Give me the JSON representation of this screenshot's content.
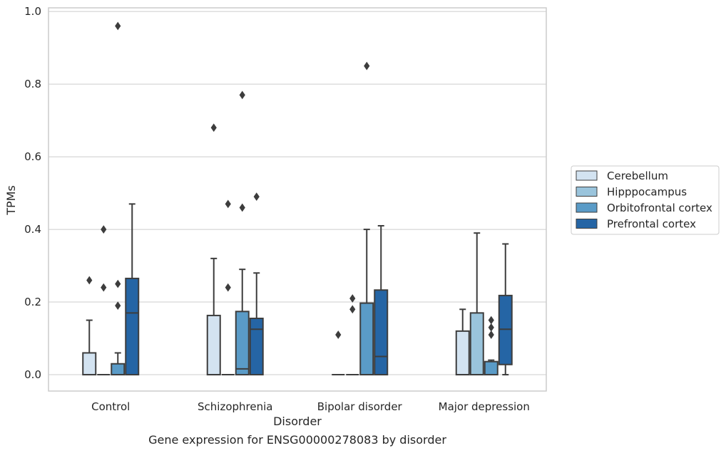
{
  "chart_data": {
    "type": "box",
    "title": "",
    "caption": "Gene expression for ENSG00000278083 by disorder",
    "xlabel": "Disorder",
    "ylabel": "TPMs",
    "ylim": [
      -0.045,
      1.01
    ],
    "yticks": [
      "0.0",
      "0.2",
      "0.4",
      "0.6",
      "0.8",
      "1.0"
    ],
    "grid": true,
    "legend_position": "right",
    "categories": [
      "Control",
      "Schizophrenia",
      "Bipolar disorder",
      "Major depression"
    ],
    "series": [
      {
        "name": "Cerebellum",
        "color": "#d3e3f1",
        "boxes": [
          {
            "q1": 0.0,
            "median": 0.0,
            "q3": 0.06,
            "whisker_low": 0.0,
            "whisker_high": 0.15,
            "outliers": [
              0.26
            ]
          },
          {
            "q1": 0.0,
            "median": 0.0,
            "q3": 0.163,
            "whisker_low": 0.0,
            "whisker_high": 0.32,
            "outliers": [
              0.68
            ]
          },
          {
            "q1": 0.0,
            "median": 0.0,
            "q3": 0.0,
            "whisker_low": 0.0,
            "whisker_high": 0.0,
            "outliers": [
              0.11
            ]
          },
          {
            "q1": 0.0,
            "median": 0.0,
            "q3": 0.12,
            "whisker_low": 0.0,
            "whisker_high": 0.18,
            "outliers": []
          }
        ]
      },
      {
        "name": "Hipppocampus",
        "color": "#9ac4dc",
        "boxes": [
          {
            "q1": 0.0,
            "median": 0.0,
            "q3": 0.0,
            "whisker_low": 0.0,
            "whisker_high": 0.0,
            "outliers": [
              0.24,
              0.4
            ]
          },
          {
            "q1": 0.0,
            "median": 0.0,
            "q3": 0.0,
            "whisker_low": 0.0,
            "whisker_high": 0.0,
            "outliers": [
              0.24,
              0.47
            ]
          },
          {
            "q1": 0.0,
            "median": 0.0,
            "q3": 0.0,
            "whisker_low": 0.0,
            "whisker_high": 0.0,
            "outliers": [
              0.18,
              0.21
            ]
          },
          {
            "q1": 0.0,
            "median": 0.0,
            "q3": 0.17,
            "whisker_low": 0.0,
            "whisker_high": 0.39,
            "outliers": []
          }
        ]
      },
      {
        "name": "Orbitofrontal cortex",
        "color": "#5a9bc7",
        "boxes": [
          {
            "q1": 0.0,
            "median": 0.0,
            "q3": 0.03,
            "whisker_low": 0.0,
            "whisker_high": 0.06,
            "outliers": [
              0.19,
              0.25,
              0.96
            ]
          },
          {
            "q1": 0.0,
            "median": 0.016,
            "q3": 0.174,
            "whisker_low": 0.0,
            "whisker_high": 0.29,
            "outliers": [
              0.46,
              0.77
            ]
          },
          {
            "q1": 0.0,
            "median": 0.0,
            "q3": 0.197,
            "whisker_low": 0.0,
            "whisker_high": 0.4,
            "outliers": [
              0.85
            ]
          },
          {
            "q1": 0.0,
            "median": 0.0,
            "q3": 0.036,
            "whisker_low": 0.0,
            "whisker_high": 0.04,
            "outliers": [
              0.11,
              0.13,
              0.15
            ]
          }
        ]
      },
      {
        "name": "Prefrontal cortex",
        "color": "#2565a5",
        "boxes": [
          {
            "q1": 0.0,
            "median": 0.17,
            "q3": 0.265,
            "whisker_low": 0.0,
            "whisker_high": 0.47,
            "outliers": []
          },
          {
            "q1": 0.0,
            "median": 0.125,
            "q3": 0.155,
            "whisker_low": 0.0,
            "whisker_high": 0.28,
            "outliers": [
              0.49
            ]
          },
          {
            "q1": 0.0,
            "median": 0.05,
            "q3": 0.233,
            "whisker_low": 0.0,
            "whisker_high": 0.41,
            "outliers": []
          },
          {
            "q1": 0.028,
            "median": 0.125,
            "q3": 0.218,
            "whisker_low": 0.0,
            "whisker_high": 0.36,
            "outliers": []
          }
        ]
      }
    ]
  }
}
